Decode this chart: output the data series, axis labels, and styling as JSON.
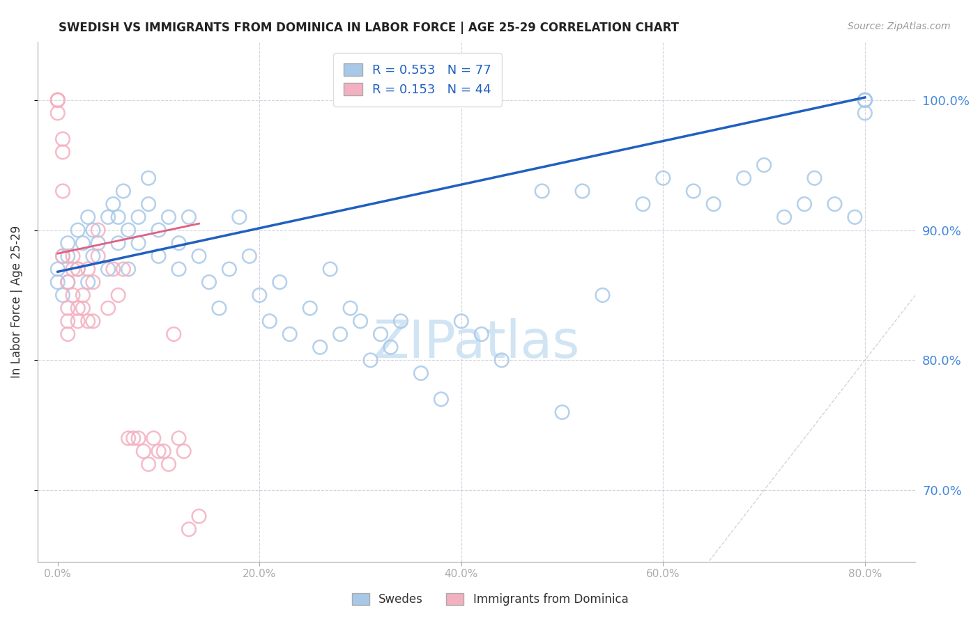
{
  "title": "SWEDISH VS IMMIGRANTS FROM DOMINICA IN LABOR FORCE | AGE 25-29 CORRELATION CHART",
  "source": "Source: ZipAtlas.com",
  "ylabel_label": "In Labor Force | Age 25-29",
  "y_tick_labels": [
    "70.0%",
    "80.0%",
    "90.0%",
    "100.0%"
  ],
  "y_tick_values": [
    0.7,
    0.8,
    0.9,
    1.0
  ],
  "x_tick_labels": [
    "0.0%",
    "20.0%",
    "40.0%",
    "60.0%",
    "80.0%"
  ],
  "x_tick_values": [
    0.0,
    0.2,
    0.4,
    0.6,
    0.8
  ],
  "xlim": [
    -0.02,
    0.85
  ],
  "ylim": [
    0.645,
    1.045
  ],
  "legend_blue_label": "R = 0.553   N = 77",
  "legend_pink_label": "R = 0.153   N = 44",
  "blue_color": "#a8c8e8",
  "pink_color": "#f4b0c0",
  "blue_line_color": "#2060c0",
  "pink_line_color": "#e06080",
  "grid_color": "#c8c8d8",
  "right_label_color": "#4488dd",
  "watermark_color": "#d0e4f4",
  "blue_scatter_x": [
    0.0,
    0.0,
    0.005,
    0.005,
    0.01,
    0.01,
    0.01,
    0.02,
    0.02,
    0.025,
    0.03,
    0.03,
    0.035,
    0.035,
    0.04,
    0.05,
    0.05,
    0.055,
    0.06,
    0.06,
    0.065,
    0.07,
    0.07,
    0.08,
    0.08,
    0.09,
    0.09,
    0.1,
    0.1,
    0.11,
    0.12,
    0.12,
    0.13,
    0.14,
    0.15,
    0.16,
    0.17,
    0.18,
    0.19,
    0.2,
    0.21,
    0.22,
    0.23,
    0.25,
    0.26,
    0.27,
    0.28,
    0.29,
    0.3,
    0.31,
    0.32,
    0.33,
    0.34,
    0.36,
    0.38,
    0.4,
    0.42,
    0.44,
    0.48,
    0.5,
    0.52,
    0.54,
    0.58,
    0.6,
    0.63,
    0.65,
    0.68,
    0.7,
    0.72,
    0.74,
    0.75,
    0.77,
    0.79,
    0.8,
    0.8,
    0.8,
    0.8
  ],
  "blue_scatter_y": [
    0.87,
    0.86,
    0.88,
    0.85,
    0.88,
    0.86,
    0.89,
    0.87,
    0.9,
    0.89,
    0.91,
    0.86,
    0.9,
    0.88,
    0.89,
    0.87,
    0.91,
    0.92,
    0.89,
    0.91,
    0.93,
    0.9,
    0.87,
    0.91,
    0.89,
    0.92,
    0.94,
    0.9,
    0.88,
    0.91,
    0.87,
    0.89,
    0.91,
    0.88,
    0.86,
    0.84,
    0.87,
    0.91,
    0.88,
    0.85,
    0.83,
    0.86,
    0.82,
    0.84,
    0.81,
    0.87,
    0.82,
    0.84,
    0.83,
    0.8,
    0.82,
    0.81,
    0.83,
    0.79,
    0.77,
    0.83,
    0.82,
    0.8,
    0.93,
    0.76,
    0.93,
    0.85,
    0.92,
    0.94,
    0.93,
    0.92,
    0.94,
    0.95,
    0.91,
    0.92,
    0.94,
    0.92,
    0.91,
    1.0,
    0.99,
    1.0,
    1.0
  ],
  "pink_scatter_x": [
    0.0,
    0.0,
    0.0,
    0.0,
    0.005,
    0.005,
    0.005,
    0.005,
    0.01,
    0.01,
    0.01,
    0.01,
    0.015,
    0.015,
    0.015,
    0.02,
    0.02,
    0.02,
    0.025,
    0.025,
    0.03,
    0.03,
    0.035,
    0.035,
    0.04,
    0.04,
    0.05,
    0.055,
    0.06,
    0.065,
    0.07,
    0.075,
    0.08,
    0.085,
    0.09,
    0.095,
    0.1,
    0.105,
    0.11,
    0.115,
    0.12,
    0.125,
    0.13,
    0.14
  ],
  "pink_scatter_y": [
    1.0,
    0.99,
    1.0,
    1.0,
    0.97,
    0.96,
    0.93,
    0.88,
    0.86,
    0.84,
    0.83,
    0.82,
    0.88,
    0.87,
    0.85,
    0.84,
    0.83,
    0.87,
    0.84,
    0.85,
    0.83,
    0.87,
    0.86,
    0.83,
    0.9,
    0.88,
    0.84,
    0.87,
    0.85,
    0.87,
    0.74,
    0.74,
    0.74,
    0.73,
    0.72,
    0.74,
    0.73,
    0.73,
    0.72,
    0.82,
    0.74,
    0.73,
    0.67,
    0.68
  ],
  "blue_line_x0": 0.0,
  "blue_line_y0": 0.868,
  "blue_line_x1": 0.8,
  "blue_line_y1": 1.002,
  "pink_line_x0": 0.0,
  "pink_line_y0": 0.882,
  "pink_line_x1": 0.14,
  "pink_line_y1": 0.905,
  "diag_color": "#d0d0d0"
}
